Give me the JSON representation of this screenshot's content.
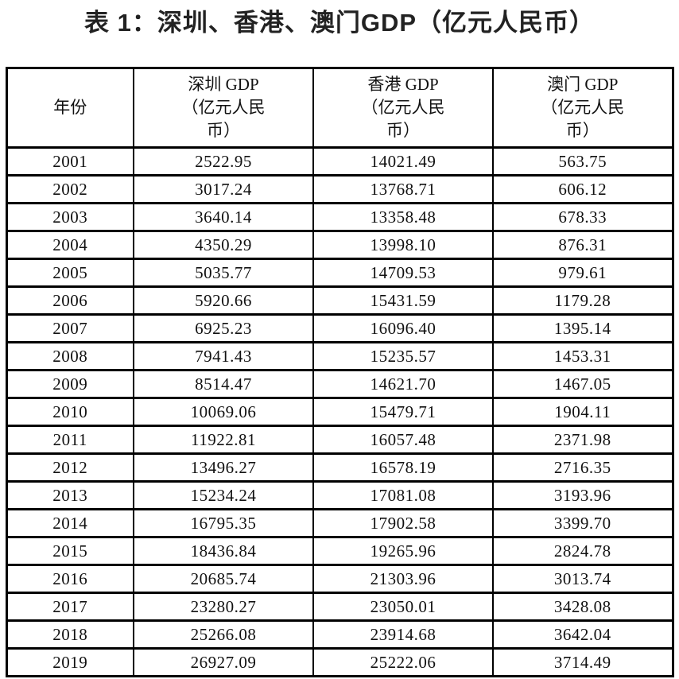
{
  "page": {
    "title": "表 1：深圳、香港、澳门GDP（亿元人民币）"
  },
  "table": {
    "headers": {
      "year": "年份",
      "shenzhen": "深圳 GDP\n（亿元人民\n币）",
      "hongkong": "香港 GDP\n（亿元人民\n币）",
      "macau": "澳门 GDP\n（亿元人民\n币）"
    },
    "rows": [
      [
        "2001",
        "2522.95",
        "14021.49",
        "563.75"
      ],
      [
        "2002",
        "3017.24",
        "13768.71",
        "606.12"
      ],
      [
        "2003",
        "3640.14",
        "13358.48",
        "678.33"
      ],
      [
        "2004",
        "4350.29",
        "13998.10",
        "876.31"
      ],
      [
        "2005",
        "5035.77",
        "14709.53",
        "979.61"
      ],
      [
        "2006",
        "5920.66",
        "15431.59",
        "1179.28"
      ],
      [
        "2007",
        "6925.23",
        "16096.40",
        "1395.14"
      ],
      [
        "2008",
        "7941.43",
        "15235.57",
        "1453.31"
      ],
      [
        "2009",
        "8514.47",
        "14621.70",
        "1467.05"
      ],
      [
        "2010",
        "10069.06",
        "15479.71",
        "1904.11"
      ],
      [
        "2011",
        "11922.81",
        "16057.48",
        "2371.98"
      ],
      [
        "2012",
        "13496.27",
        "16578.19",
        "2716.35"
      ],
      [
        "2013",
        "15234.24",
        "17081.08",
        "3193.96"
      ],
      [
        "2014",
        "16795.35",
        "17902.58",
        "3399.70"
      ],
      [
        "2015",
        "18436.84",
        "19265.96",
        "2824.78"
      ],
      [
        "2016",
        "20685.74",
        "21303.96",
        "3013.74"
      ],
      [
        "2017",
        "23280.27",
        "23050.01",
        "3428.08"
      ],
      [
        "2018",
        "25266.08",
        "23914.68",
        "3642.04"
      ],
      [
        "2019",
        "26927.09",
        "25222.06",
        "3714.49"
      ]
    ]
  },
  "chart_data": {
    "type": "table",
    "title": "表 1：深圳、香港、澳门GDP（亿元人民币）",
    "columns": [
      "年份",
      "深圳 GDP（亿元人民币）",
      "香港 GDP（亿元人民币）",
      "澳门 GDP（亿元人民币）"
    ],
    "categories": [
      2001,
      2002,
      2003,
      2004,
      2005,
      2006,
      2007,
      2008,
      2009,
      2010,
      2011,
      2012,
      2013,
      2014,
      2015,
      2016,
      2017,
      2018,
      2019
    ],
    "series": [
      {
        "name": "深圳 GDP（亿元人民币）",
        "values": [
          2522.95,
          3017.24,
          3640.14,
          4350.29,
          5035.77,
          5920.66,
          6925.23,
          7941.43,
          8514.47,
          10069.06,
          11922.81,
          13496.27,
          15234.24,
          16795.35,
          18436.84,
          20685.74,
          23280.27,
          25266.08,
          26927.09
        ]
      },
      {
        "name": "香港 GDP（亿元人民币）",
        "values": [
          14021.49,
          13768.71,
          13358.48,
          13998.1,
          14709.53,
          15431.59,
          16096.4,
          15235.57,
          14621.7,
          15479.71,
          16057.48,
          16578.19,
          17081.08,
          17902.58,
          19265.96,
          21303.96,
          23050.01,
          23914.68,
          25222.06
        ]
      },
      {
        "name": "澳门 GDP（亿元人民币）",
        "values": [
          563.75,
          606.12,
          678.33,
          876.31,
          979.61,
          1179.28,
          1395.14,
          1453.31,
          1467.05,
          1904.11,
          2371.98,
          2716.35,
          3193.96,
          3399.7,
          2824.78,
          3013.74,
          3428.08,
          3642.04,
          3714.49
        ]
      }
    ],
    "layout": {
      "grid": "full-borders",
      "header_rows": 1
    }
  },
  "colors": {
    "background": "#ffffff",
    "border": "#000000",
    "title_text": "#222222",
    "cell_text": "#111111"
  }
}
